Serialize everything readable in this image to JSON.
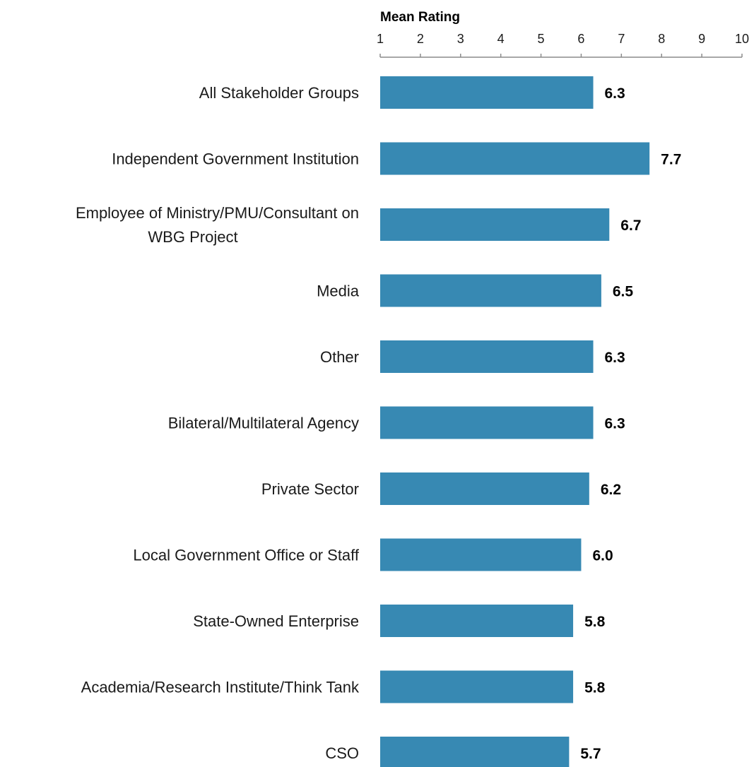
{
  "chart_data": {
    "type": "bar",
    "orientation": "horizontal",
    "xlabel": "Mean Rating",
    "xlim": [
      1,
      10
    ],
    "xticks": [
      1,
      2,
      3,
      4,
      5,
      6,
      7,
      8,
      9,
      10
    ],
    "axis_position": "top",
    "grid": false,
    "bar_color": "#3789B3",
    "categories": [
      [
        "All Stakeholder Groups"
      ],
      [
        "Independent Government Institution"
      ],
      [
        "Employee of Ministry/PMU/Consultant on",
        "WBG Project"
      ],
      [
        "Media"
      ],
      [
        "Other"
      ],
      [
        "Bilateral/Multilateral Agency"
      ],
      [
        "Private Sector"
      ],
      [
        "Local Government Office or Staff"
      ],
      [
        "State-Owned Enterprise"
      ],
      [
        "Academia/Research Institute/Think Tank"
      ],
      [
        "CSO"
      ]
    ],
    "values": [
      6.3,
      7.7,
      6.7,
      6.5,
      6.3,
      6.3,
      6.2,
      6.0,
      5.8,
      5.8,
      5.7
    ],
    "value_labels": [
      "6.3",
      "7.7",
      "6.7",
      "6.5",
      "6.3",
      "6.3",
      "6.2",
      "6.0",
      "5.8",
      "5.8",
      "5.7"
    ]
  }
}
